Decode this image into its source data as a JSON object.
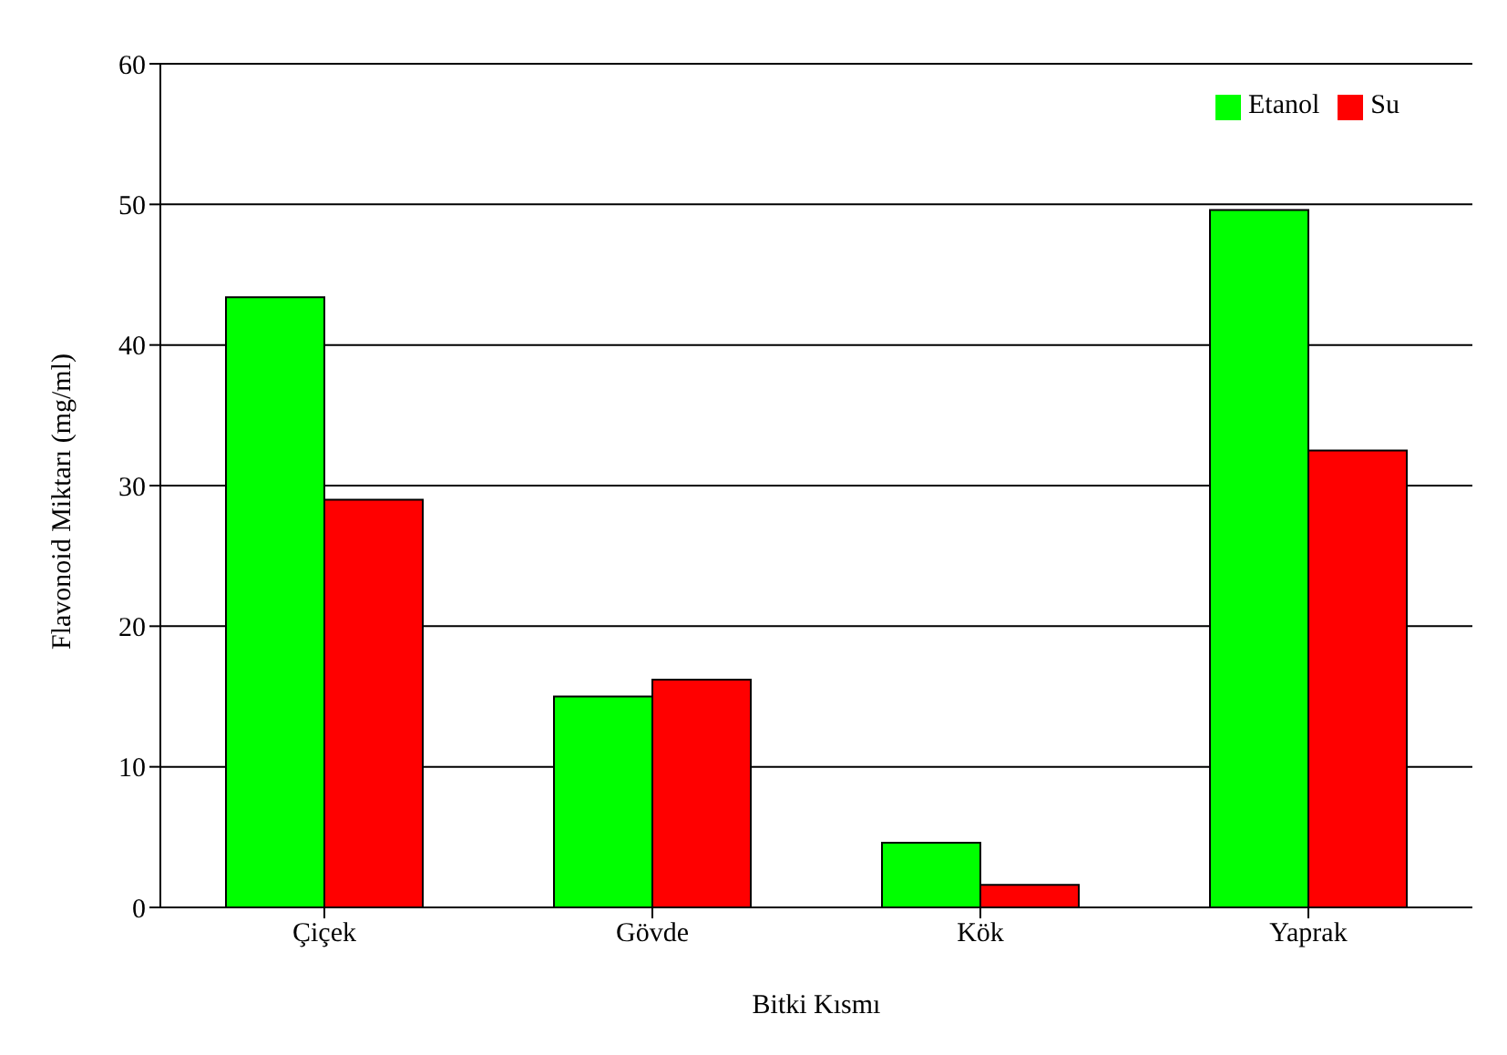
{
  "chart_data": {
    "type": "bar",
    "xlabel": "Bitki Kısmı",
    "ylabel": "Flavonoid Miktarı (mg/ml)",
    "categories": [
      "Çiçek",
      "Gövde",
      "Kök",
      "Yaprak"
    ],
    "series": [
      {
        "name": "Etanol",
        "color": "#00ff00",
        "values": [
          43.4,
          15,
          4.6,
          49.6
        ]
      },
      {
        "name": "Su",
        "color": "#ff0000",
        "values": [
          29,
          16.2,
          1.6,
          32.5
        ]
      }
    ],
    "ylim": [
      0,
      60
    ],
    "yticks": [
      0,
      10,
      20,
      30,
      40,
      50,
      60
    ],
    "grid": "y",
    "legend": "top right"
  }
}
